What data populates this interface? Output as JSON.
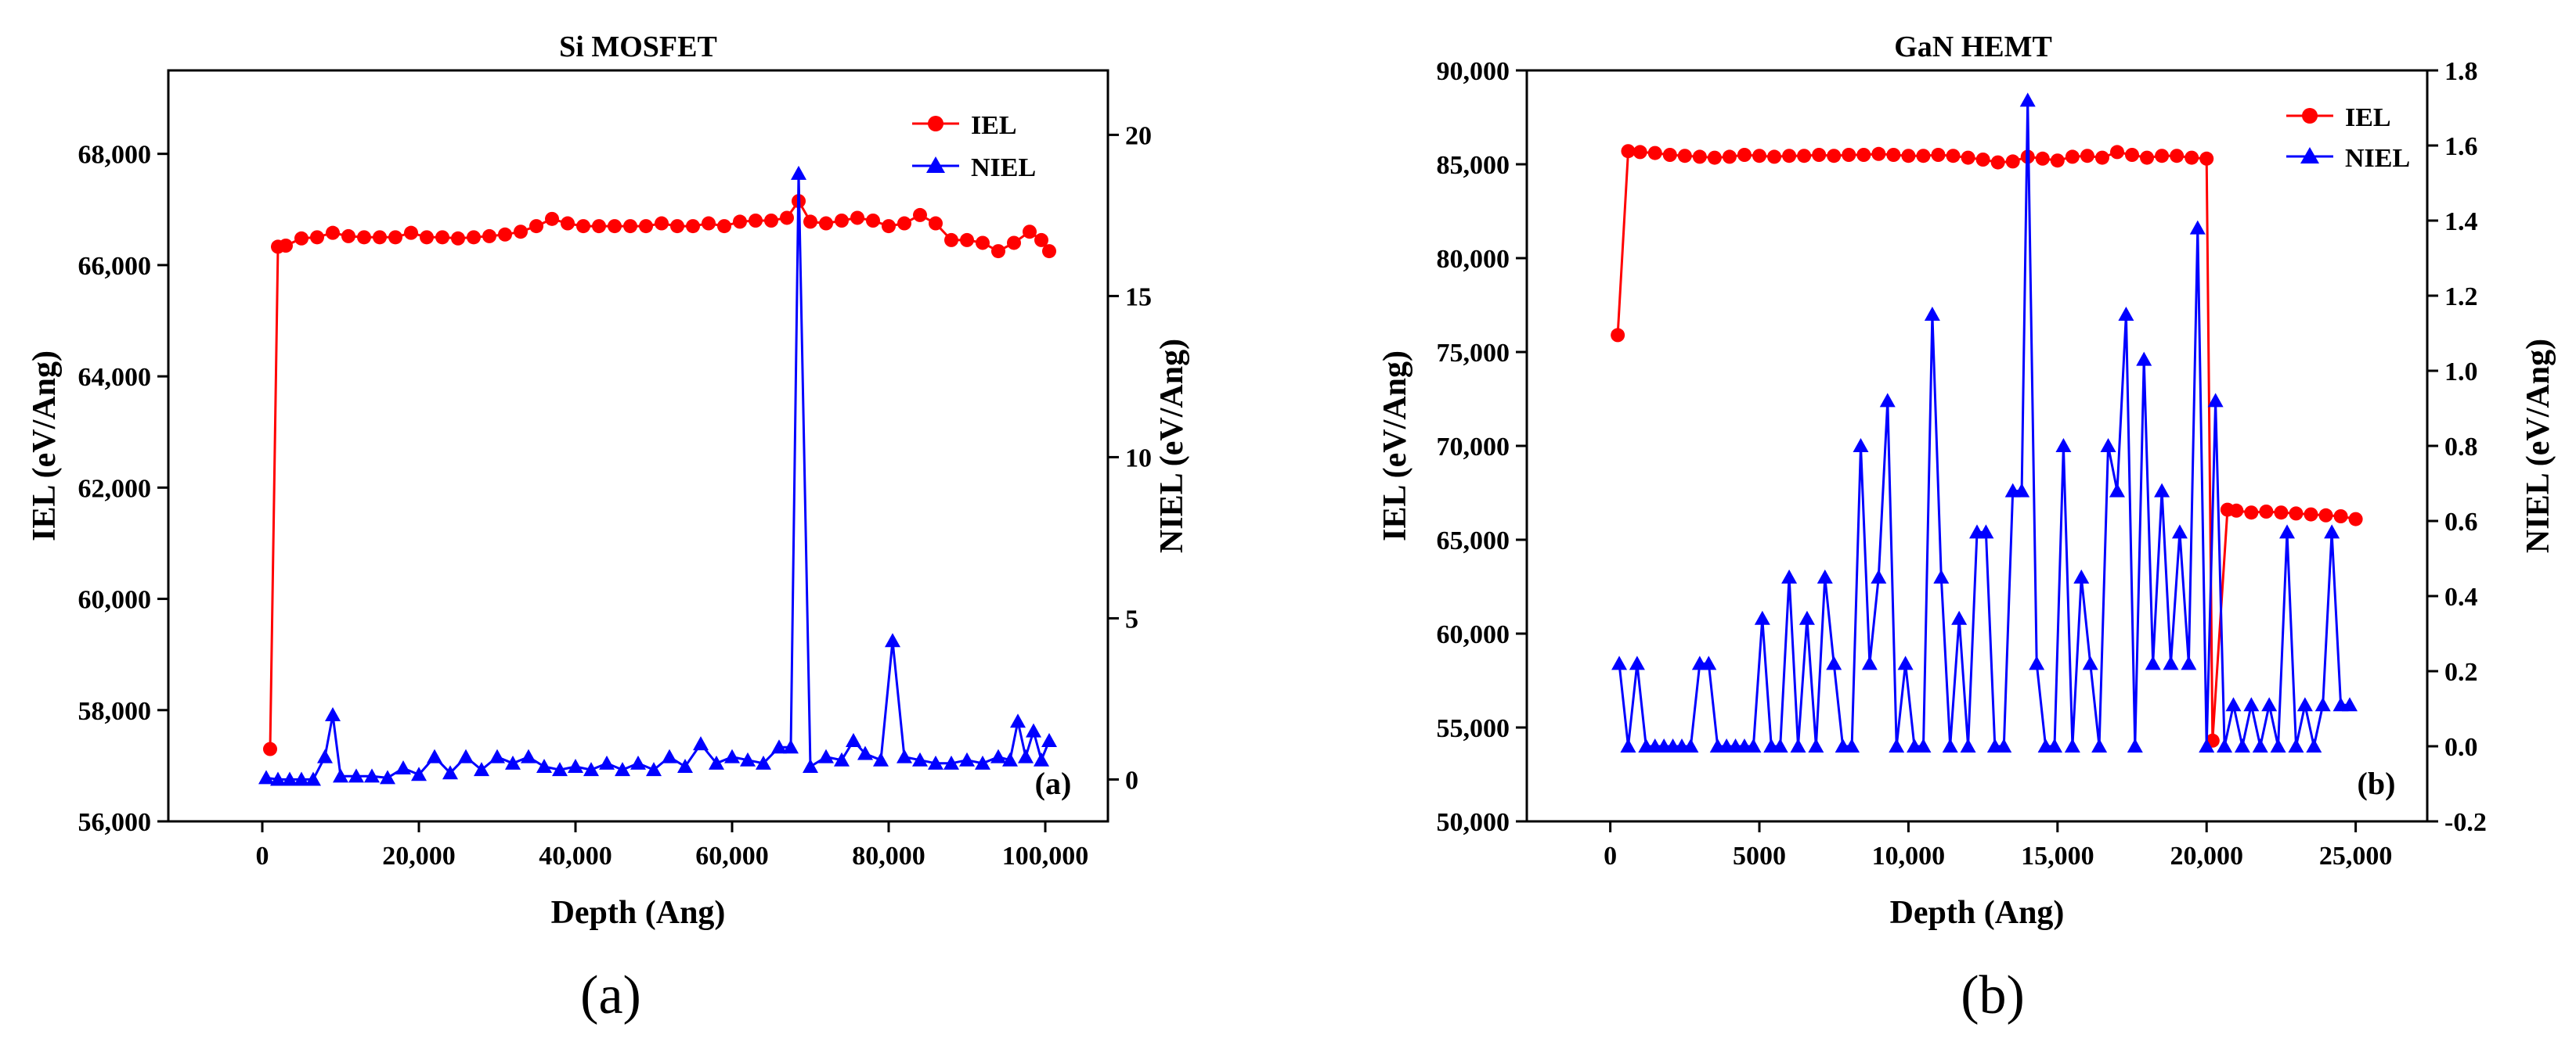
{
  "colors": {
    "iel": "#ff0000",
    "niel": "#0000ff",
    "axis": "#000000"
  },
  "chart_data": [
    {
      "type": "line",
      "title": "Si MOSFET",
      "panel_label": "(a)",
      "inner_label": "(a)",
      "xlabel": "Depth (Ang)",
      "ylabel_left": "IEL (eV/Ang)",
      "ylabel_right": "NIEL (eV/Ang)",
      "xlim": [
        -12000,
        108000
      ],
      "ylim_left": [
        56000,
        69500
      ],
      "ylim_right": [
        -1.3,
        22
      ],
      "x_ticks": [
        0,
        20000,
        40000,
        60000,
        80000,
        100000
      ],
      "x_tick_labels": [
        "0",
        "20,000",
        "40,000",
        "60,000",
        "80,000",
        "100,000"
      ],
      "y_left_ticks": [
        56000,
        58000,
        60000,
        62000,
        64000,
        66000,
        68000
      ],
      "y_left_tick_labels": [
        "56,000",
        "58,000",
        "60,000",
        "62,000",
        "64,000",
        "66,000",
        "68,000"
      ],
      "y_right_ticks": [
        0,
        5,
        10,
        15,
        20
      ],
      "y_right_tick_labels": [
        "0",
        "5",
        "10",
        "15",
        "20"
      ],
      "legend": [
        "IEL",
        "NIEL"
      ],
      "legend_position": "top-right",
      "series": [
        {
          "name": "IEL",
          "axis": "left",
          "marker": "circle",
          "x": [
            1000,
            2000,
            3000,
            5000,
            7000,
            9000,
            11000,
            13000,
            15000,
            17000,
            19000,
            21000,
            23000,
            25000,
            27000,
            29000,
            31000,
            33000,
            35000,
            37000,
            39000,
            41000,
            43000,
            45000,
            47000,
            49000,
            51000,
            53000,
            55000,
            57000,
            59000,
            61000,
            63000,
            65000,
            67000,
            68500,
            70000,
            72000,
            74000,
            76000,
            78000,
            80000,
            82000,
            84000,
            86000,
            88000,
            90000,
            92000,
            94000,
            96000,
            98000,
            99500,
            100500
          ],
          "y": [
            57300,
            66330,
            66350,
            66480,
            66500,
            66580,
            66520,
            66500,
            66500,
            66500,
            66580,
            66500,
            66500,
            66480,
            66500,
            66520,
            66550,
            66600,
            66700,
            66830,
            66750,
            66700,
            66700,
            66700,
            66700,
            66700,
            66750,
            66700,
            66700,
            66750,
            66700,
            66780,
            66800,
            66800,
            66850,
            67150,
            66780,
            66750,
            66800,
            66850,
            66800,
            66700,
            66750,
            66900,
            66750,
            66450,
            66450,
            66400,
            66250,
            66400,
            66600,
            66450,
            66250
          ]
        },
        {
          "name": "NIEL",
          "axis": "right",
          "marker": "triangle",
          "x": [
            500,
            2000,
            3500,
            5000,
            6500,
            8000,
            9000,
            10000,
            12000,
            14000,
            16000,
            18000,
            20000,
            22000,
            24000,
            26000,
            28000,
            30000,
            32000,
            34000,
            36000,
            38000,
            40000,
            42000,
            44000,
            46000,
            48000,
            50000,
            52000,
            54000,
            56000,
            58000,
            60000,
            62000,
            64000,
            66000,
            67500,
            68500,
            70000,
            72000,
            74000,
            75500,
            77000,
            79000,
            80500,
            82000,
            84000,
            86000,
            88000,
            90000,
            92000,
            94000,
            95500,
            96500,
            97500,
            98500,
            99500,
            100500
          ],
          "y": [
            0.05,
            0.0,
            0.0,
            0.0,
            0.0,
            0.7,
            2.0,
            0.1,
            0.1,
            0.1,
            0.05,
            0.35,
            0.15,
            0.7,
            0.2,
            0.7,
            0.3,
            0.7,
            0.5,
            0.7,
            0.4,
            0.3,
            0.4,
            0.3,
            0.5,
            0.3,
            0.5,
            0.3,
            0.7,
            0.4,
            1.1,
            0.5,
            0.7,
            0.6,
            0.5,
            1.0,
            1.0,
            18.8,
            0.4,
            0.7,
            0.6,
            1.2,
            0.8,
            0.6,
            4.3,
            0.7,
            0.6,
            0.5,
            0.5,
            0.6,
            0.5,
            0.7,
            0.6,
            1.8,
            0.7,
            1.5,
            0.6,
            1.2
          ]
        }
      ]
    },
    {
      "type": "line",
      "title": "GaN HEMT",
      "panel_label": "(b)",
      "inner_label": "(b)",
      "xlabel": "Depth (Ang)",
      "ylabel_left": "IEL (eV/Ang)",
      "ylabel_right": "NIEL (eV/Ang)",
      "xlim": [
        -2800,
        27400
      ],
      "ylim_left": [
        50000,
        90000
      ],
      "ylim_right": [
        -0.2,
        1.8
      ],
      "x_ticks": [
        0,
        5000,
        10000,
        15000,
        20000,
        25000
      ],
      "x_tick_labels": [
        "0",
        "5000",
        "10,000",
        "15,000",
        "20,000",
        "25,000"
      ],
      "y_left_ticks": [
        50000,
        55000,
        60000,
        65000,
        70000,
        75000,
        80000,
        85000,
        90000
      ],
      "y_left_tick_labels": [
        "50,000",
        "55,000",
        "60,000",
        "65,000",
        "70,000",
        "75,000",
        "80,000",
        "85,000",
        "90,000"
      ],
      "y_right_ticks": [
        -0.2,
        0.0,
        0.2,
        0.4,
        0.6,
        0.8,
        1.0,
        1.2,
        1.4,
        1.6,
        1.8
      ],
      "y_right_tick_labels": [
        "-0.2",
        "0.0",
        "0.2",
        "0.4",
        "0.6",
        "0.8",
        "1.0",
        "1.2",
        "1.4",
        "1.6",
        "1.8"
      ],
      "legend": [
        "IEL",
        "NIEL"
      ],
      "legend_position": "top-right",
      "series": [
        {
          "name": "IEL",
          "axis": "left",
          "marker": "circle",
          "x": [
            250,
            600,
            1000,
            1500,
            2000,
            2500,
            3000,
            3500,
            4000,
            4500,
            5000,
            5500,
            6000,
            6500,
            7000,
            7500,
            8000,
            8500,
            9000,
            9500,
            10000,
            10500,
            11000,
            11500,
            12000,
            12500,
            13000,
            13500,
            14000,
            14500,
            15000,
            15500,
            16000,
            16500,
            17000,
            17500,
            18000,
            18500,
            19000,
            19500,
            20000,
            20200,
            20700,
            21000,
            21500,
            22000,
            22500,
            23000,
            23500,
            24000,
            24500,
            25000
          ],
          "y": [
            75900,
            85700,
            85650,
            85600,
            85500,
            85450,
            85400,
            85350,
            85400,
            85500,
            85450,
            85400,
            85450,
            85450,
            85500,
            85450,
            85500,
            85500,
            85550,
            85500,
            85450,
            85450,
            85500,
            85450,
            85350,
            85250,
            85100,
            85150,
            85400,
            85300,
            85200,
            85400,
            85450,
            85350,
            85650,
            85500,
            85350,
            85450,
            85450,
            85350,
            85300,
            54300,
            66600,
            66550,
            66450,
            66500,
            66450,
            66400,
            66350,
            66300,
            66250,
            66100
          ]
        },
        {
          "name": "NIEL",
          "axis": "right",
          "marker": "triangle",
          "x": [
            300,
            600,
            900,
            1200,
            1500,
            1800,
            2100,
            2400,
            2700,
            3000,
            3300,
            3600,
            3900,
            4200,
            4500,
            4800,
            5100,
            5400,
            5700,
            6000,
            6300,
            6600,
            6900,
            7200,
            7500,
            7800,
            8100,
            8400,
            8700,
            9000,
            9300,
            9600,
            9900,
            10200,
            10500,
            10800,
            11100,
            11400,
            11700,
            12000,
            12300,
            12600,
            12900,
            13200,
            13500,
            13800,
            14000,
            14300,
            14600,
            14900,
            15200,
            15500,
            15800,
            16100,
            16400,
            16700,
            17000,
            17300,
            17600,
            17900,
            18200,
            18500,
            18800,
            19100,
            19400,
            19700,
            20000,
            20300,
            20600,
            20900,
            21200,
            21500,
            21800,
            22100,
            22400,
            22700,
            23000,
            23300,
            23600,
            23900,
            24200,
            24500,
            24800
          ],
          "y": [
            0.22,
            0.0,
            0.22,
            0.0,
            0.0,
            0.0,
            0.0,
            0.0,
            0.0,
            0.22,
            0.22,
            0.0,
            0.0,
            0.0,
            0.0,
            0.0,
            0.34,
            0.0,
            0.0,
            0.45,
            0.0,
            0.34,
            0.0,
            0.45,
            0.22,
            0.0,
            0.0,
            0.8,
            0.22,
            0.45,
            0.92,
            0.0,
            0.22,
            0.0,
            0.0,
            1.15,
            0.45,
            0.0,
            0.34,
            0.0,
            0.57,
            0.57,
            0.0,
            0.0,
            0.68,
            0.68,
            1.72,
            0.22,
            0.0,
            0.0,
            0.8,
            0.0,
            0.45,
            0.22,
            0.0,
            0.8,
            0.68,
            1.15,
            0.0,
            1.03,
            0.22,
            0.68,
            0.22,
            0.57,
            0.22,
            1.38,
            0.0,
            0.92,
            0.0,
            0.11,
            0.0,
            0.11,
            0.0,
            0.11,
            0.0,
            0.57,
            0.0,
            0.11,
            0.0,
            0.11,
            0.57,
            0.11,
            0.11
          ]
        }
      ]
    }
  ]
}
